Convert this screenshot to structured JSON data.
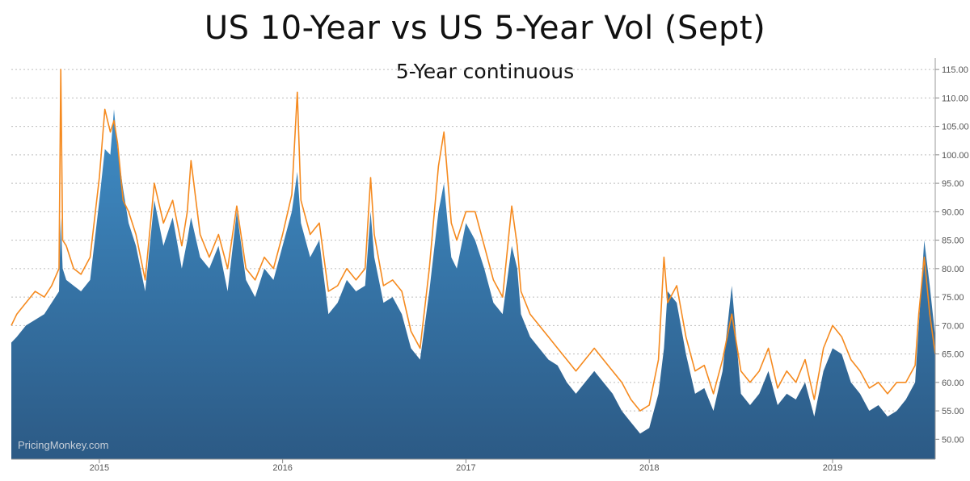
{
  "chart_data": {
    "type": "area",
    "title": "US 10-Year vs US 5-Year Vol (Sept)",
    "subtitle": "5-Year continuous",
    "watermark": "PricingMonkey.com",
    "ylim": [
      46.5,
      117
    ],
    "y_ticks": [
      "50.00",
      "55.00",
      "60.00",
      "65.00",
      "70.00",
      "75.00",
      "80.00",
      "85.00",
      "90.00",
      "95.00",
      "100.00",
      "105.00",
      "110.00",
      "115.00"
    ],
    "x_range": [
      2014.52,
      2019.56
    ],
    "x_ticks": [
      {
        "label": "2015",
        "x": 2015.0
      },
      {
        "label": "2016",
        "x": 2016.0
      },
      {
        "label": "2017",
        "x": 2017.0
      },
      {
        "label": "2018",
        "x": 2018.0
      },
      {
        "label": "2019",
        "x": 2019.0
      }
    ],
    "grid": true,
    "colors": {
      "area_top": "#3f8dc7",
      "area_bottom": "#2c5a85",
      "line": "#f58a1f"
    },
    "series": [
      {
        "kind": "area",
        "x": [
          2014.52,
          2014.55,
          2014.6,
          2014.65,
          2014.7,
          2014.74,
          2014.78,
          2014.79,
          2014.8,
          2014.82,
          2014.86,
          2014.9,
          2014.95,
          2015.0,
          2015.03,
          2015.06,
          2015.08,
          2015.1,
          2015.13,
          2015.16,
          2015.2,
          2015.25,
          2015.3,
          2015.35,
          2015.4,
          2015.45,
          2015.48,
          2015.5,
          2015.55,
          2015.6,
          2015.65,
          2015.7,
          2015.75,
          2015.8,
          2015.85,
          2015.9,
          2015.95,
          2016.0,
          2016.05,
          2016.08,
          2016.1,
          2016.15,
          2016.2,
          2016.25,
          2016.3,
          2016.35,
          2016.4,
          2016.45,
          2016.48,
          2016.5,
          2016.55,
          2016.6,
          2016.65,
          2016.7,
          2016.75,
          2016.8,
          2016.85,
          2016.88,
          2016.9,
          2016.92,
          2016.95,
          2017.0,
          2017.05,
          2017.1,
          2017.15,
          2017.2,
          2017.25,
          2017.28,
          2017.3,
          2017.35,
          2017.4,
          2017.45,
          2017.5,
          2017.55,
          2017.6,
          2017.65,
          2017.7,
          2017.75,
          2017.8,
          2017.85,
          2017.9,
          2017.95,
          2018.0,
          2018.05,
          2018.08,
          2018.1,
          2018.15,
          2018.2,
          2018.25,
          2018.3,
          2018.35,
          2018.4,
          2018.45,
          2018.5,
          2018.55,
          2018.6,
          2018.65,
          2018.7,
          2018.75,
          2018.8,
          2018.85,
          2018.9,
          2018.95,
          2019.0,
          2019.05,
          2019.1,
          2019.15,
          2019.2,
          2019.25,
          2019.3,
          2019.35,
          2019.4,
          2019.45,
          2019.47,
          2019.5,
          2019.53,
          2019.56
        ],
        "y": [
          67,
          68,
          70,
          71,
          72,
          74,
          76,
          89,
          80,
          78,
          77,
          76,
          78,
          92,
          101,
          100,
          108,
          101,
          94,
          88,
          84,
          76,
          92,
          84,
          89,
          80,
          85,
          89,
          82,
          80,
          84,
          76,
          90,
          78,
          75,
          80,
          78,
          84,
          90,
          97,
          88,
          82,
          85,
          72,
          74,
          78,
          76,
          77,
          90,
          82,
          74,
          75,
          72,
          66,
          64,
          76,
          90,
          95,
          88,
          82,
          80,
          88,
          85,
          80,
          74,
          72,
          84,
          80,
          72,
          68,
          66,
          64,
          63,
          60,
          58,
          60,
          62,
          60,
          58,
          55,
          53,
          51,
          52,
          58,
          66,
          76,
          74,
          65,
          58,
          59,
          55,
          62,
          77,
          58,
          56,
          58,
          62,
          56,
          58,
          57,
          60,
          54,
          62,
          66,
          65,
          60,
          58,
          55,
          56,
          54,
          55,
          57,
          60,
          70,
          85,
          77,
          68
        ]
      },
      {
        "kind": "line",
        "x": [
          2014.52,
          2014.55,
          2014.6,
          2014.65,
          2014.7,
          2014.74,
          2014.78,
          2014.79,
          2014.8,
          2014.82,
          2014.86,
          2014.9,
          2014.95,
          2015.0,
          2015.03,
          2015.06,
          2015.08,
          2015.1,
          2015.13,
          2015.16,
          2015.2,
          2015.25,
          2015.3,
          2015.35,
          2015.4,
          2015.45,
          2015.48,
          2015.5,
          2015.55,
          2015.6,
          2015.65,
          2015.7,
          2015.75,
          2015.8,
          2015.85,
          2015.9,
          2015.95,
          2016.0,
          2016.05,
          2016.08,
          2016.1,
          2016.15,
          2016.2,
          2016.25,
          2016.3,
          2016.35,
          2016.4,
          2016.45,
          2016.48,
          2016.5,
          2016.55,
          2016.6,
          2016.65,
          2016.7,
          2016.75,
          2016.8,
          2016.85,
          2016.88,
          2016.9,
          2016.92,
          2016.95,
          2017.0,
          2017.05,
          2017.1,
          2017.15,
          2017.2,
          2017.25,
          2017.28,
          2017.3,
          2017.35,
          2017.4,
          2017.45,
          2017.5,
          2017.55,
          2017.6,
          2017.65,
          2017.7,
          2017.75,
          2017.8,
          2017.85,
          2017.9,
          2017.95,
          2018.0,
          2018.05,
          2018.08,
          2018.1,
          2018.15,
          2018.2,
          2018.25,
          2018.3,
          2018.35,
          2018.4,
          2018.45,
          2018.5,
          2018.55,
          2018.6,
          2018.65,
          2018.7,
          2018.75,
          2018.8,
          2018.85,
          2018.9,
          2018.95,
          2019.0,
          2019.05,
          2019.1,
          2019.15,
          2019.2,
          2019.25,
          2019.3,
          2019.35,
          2019.4,
          2019.45,
          2019.47,
          2019.5,
          2019.53,
          2019.56
        ],
        "y": [
          70,
          72,
          74,
          76,
          75,
          77,
          80,
          115,
          85,
          84,
          80,
          79,
          82,
          96,
          108,
          104,
          106,
          102,
          92,
          90,
          86,
          78,
          95,
          88,
          92,
          84,
          90,
          99,
          86,
          82,
          86,
          80,
          91,
          80,
          78,
          82,
          80,
          86,
          93,
          111,
          92,
          86,
          88,
          76,
          77,
          80,
          78,
          80,
          96,
          86,
          77,
          78,
          76,
          69,
          66,
          80,
          98,
          104,
          96,
          88,
          85,
          90,
          90,
          84,
          78,
          75,
          91,
          84,
          76,
          72,
          70,
          68,
          66,
          64,
          62,
          64,
          66,
          64,
          62,
          60,
          57,
          55,
          56,
          64,
          82,
          74,
          77,
          68,
          62,
          63,
          58,
          64,
          72,
          62,
          60,
          62,
          66,
          59,
          62,
          60,
          64,
          57,
          66,
          70,
          68,
          64,
          62,
          59,
          60,
          58,
          60,
          60,
          63,
          72,
          82,
          72,
          65
        ]
      }
    ]
  }
}
